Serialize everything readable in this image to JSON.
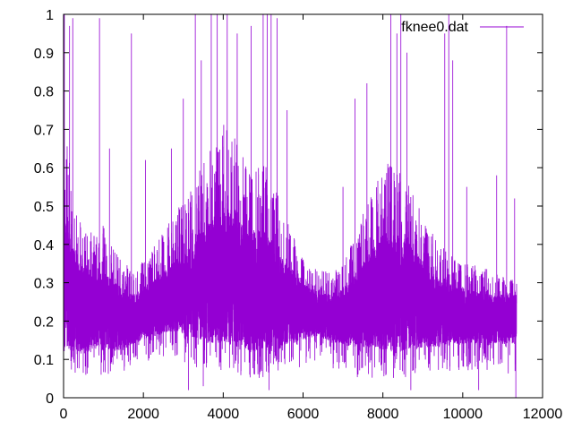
{
  "chart_data": {
    "type": "line",
    "title": "",
    "xlabel": "",
    "ylabel": "",
    "xlim": [
      0,
      12000
    ],
    "ylim": [
      0,
      1
    ],
    "x_ticks": [
      "0",
      "2000",
      "4000",
      "6000",
      "8000",
      "10000",
      "12000"
    ],
    "y_ticks": [
      "0",
      "0.1",
      "0.2",
      "0.3",
      "0.4",
      "0.5",
      "0.6",
      "0.7",
      "0.8",
      "0.9",
      "1"
    ],
    "grid": false,
    "legend_position": "top-right",
    "series": [
      {
        "name": "fknee0.dat",
        "color": "#9400d3",
        "x_range": [
          0,
          11350
        ],
        "points": 11350,
        "envelope": {
          "x": [
            0,
            250,
            500,
            800,
            1000,
            1300,
            1600,
            1800,
            2000,
            2300,
            2600,
            2900,
            3200,
            3500,
            3800,
            4000,
            4200,
            4400,
            4700,
            5000,
            5200,
            5400,
            5700,
            6000,
            6300,
            6600,
            6900,
            7200,
            7500,
            7800,
            8000,
            8200,
            8400,
            8700,
            9000,
            9300,
            9600,
            9900,
            10200,
            10500,
            10800,
            11100,
            11350
          ],
          "upper": [
            0.75,
            0.55,
            0.45,
            0.42,
            0.45,
            0.38,
            0.35,
            0.33,
            0.36,
            0.4,
            0.45,
            0.5,
            0.55,
            0.62,
            0.68,
            0.72,
            0.7,
            0.65,
            0.6,
            0.62,
            0.58,
            0.52,
            0.45,
            0.38,
            0.34,
            0.33,
            0.34,
            0.4,
            0.48,
            0.55,
            0.6,
            0.62,
            0.6,
            0.55,
            0.48,
            0.42,
            0.38,
            0.36,
            0.35,
            0.34,
            0.33,
            0.32,
            0.32
          ],
          "lower": [
            0.07,
            0.05,
            0.05,
            0.06,
            0.06,
            0.05,
            0.07,
            0.08,
            0.09,
            0.1,
            0.11,
            0.1,
            0.08,
            0.07,
            0.06,
            0.06,
            0.07,
            0.06,
            0.05,
            0.05,
            0.06,
            0.06,
            0.07,
            0.08,
            0.09,
            0.08,
            0.06,
            0.05,
            0.05,
            0.05,
            0.05,
            0.05,
            0.05,
            0.05,
            0.06,
            0.06,
            0.07,
            0.07,
            0.07,
            0.06,
            0.06,
            0.06,
            0.06
          ],
          "typical_max": [
            0.48,
            0.4,
            0.34,
            0.32,
            0.33,
            0.3,
            0.28,
            0.27,
            0.29,
            0.31,
            0.34,
            0.37,
            0.4,
            0.44,
            0.48,
            0.5,
            0.49,
            0.46,
            0.43,
            0.44,
            0.42,
            0.38,
            0.34,
            0.3,
            0.28,
            0.27,
            0.28,
            0.31,
            0.35,
            0.4,
            0.43,
            0.44,
            0.43,
            0.4,
            0.36,
            0.32,
            0.3,
            0.29,
            0.28,
            0.28,
            0.27,
            0.27,
            0.27
          ],
          "typical_min": [
            0.14,
            0.12,
            0.12,
            0.13,
            0.13,
            0.12,
            0.13,
            0.14,
            0.15,
            0.16,
            0.17,
            0.17,
            0.16,
            0.15,
            0.14,
            0.14,
            0.14,
            0.13,
            0.12,
            0.12,
            0.13,
            0.13,
            0.14,
            0.15,
            0.16,
            0.15,
            0.14,
            0.13,
            0.13,
            0.13,
            0.12,
            0.12,
            0.12,
            0.13,
            0.13,
            0.13,
            0.14,
            0.14,
            0.14,
            0.14,
            0.14,
            0.14,
            0.14
          ]
        },
        "peaks": [
          {
            "x": 20,
            "y": 1.0
          },
          {
            "x": 150,
            "y": 0.97
          },
          {
            "x": 230,
            "y": 0.99
          },
          {
            "x": 900,
            "y": 0.99
          },
          {
            "x": 1150,
            "y": 0.65
          },
          {
            "x": 1700,
            "y": 0.95
          },
          {
            "x": 2050,
            "y": 0.62
          },
          {
            "x": 2700,
            "y": 0.65
          },
          {
            "x": 3000,
            "y": 0.78
          },
          {
            "x": 3300,
            "y": 1.0
          },
          {
            "x": 3450,
            "y": 0.88
          },
          {
            "x": 3700,
            "y": 1.0
          },
          {
            "x": 3850,
            "y": 1.0
          },
          {
            "x": 4100,
            "y": 1.0
          },
          {
            "x": 4350,
            "y": 0.95
          },
          {
            "x": 4700,
            "y": 0.97
          },
          {
            "x": 5000,
            "y": 1.0
          },
          {
            "x": 5100,
            "y": 1.0
          },
          {
            "x": 5200,
            "y": 1.0
          },
          {
            "x": 5350,
            "y": 0.99
          },
          {
            "x": 5600,
            "y": 0.75
          },
          {
            "x": 7000,
            "y": 0.55
          },
          {
            "x": 7300,
            "y": 0.78
          },
          {
            "x": 7600,
            "y": 0.82
          },
          {
            "x": 8200,
            "y": 1.0
          },
          {
            "x": 8350,
            "y": 0.95
          },
          {
            "x": 8450,
            "y": 1.0
          },
          {
            "x": 8600,
            "y": 0.9
          },
          {
            "x": 9550,
            "y": 0.95
          },
          {
            "x": 9650,
            "y": 1.0
          },
          {
            "x": 9750,
            "y": 0.88
          },
          {
            "x": 10100,
            "y": 0.55
          },
          {
            "x": 10850,
            "y": 0.58
          },
          {
            "x": 11100,
            "y": 0.97
          },
          {
            "x": 11300,
            "y": 0.52
          }
        ],
        "dips": [
          {
            "x": 11330,
            "y": 0.0
          },
          {
            "x": 3130,
            "y": 0.02
          },
          {
            "x": 3500,
            "y": 0.03
          },
          {
            "x": 5150,
            "y": 0.02
          },
          {
            "x": 8700,
            "y": 0.02
          },
          {
            "x": 10400,
            "y": 0.02
          }
        ]
      }
    ]
  }
}
